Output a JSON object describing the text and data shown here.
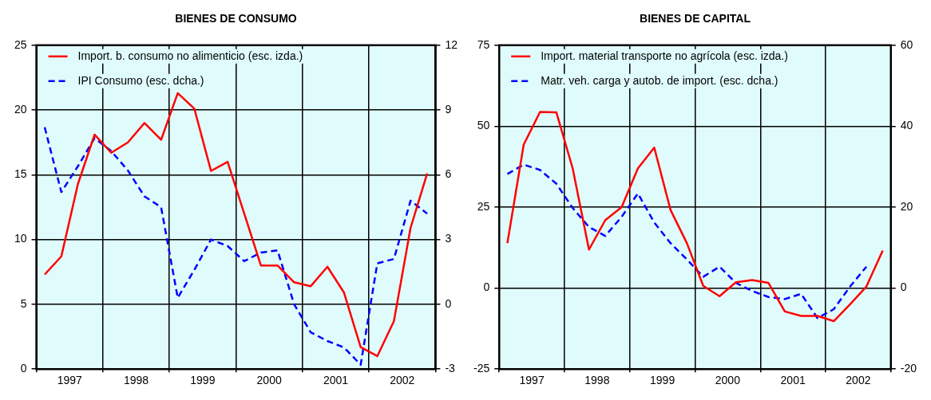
{
  "chart_data": [
    {
      "type": "line",
      "title": "BIENES DE CONSUMO",
      "x": [
        1997.125,
        1997.375,
        1997.625,
        1997.875,
        1998.125,
        1998.375,
        1998.625,
        1998.875,
        1999.125,
        1999.375,
        1999.625,
        1999.875,
        2000.125,
        2000.375,
        2000.625,
        2000.875,
        2001.125,
        2001.375,
        2001.625,
        2001.875,
        2002.125,
        2002.375,
        2002.625,
        2002.875
      ],
      "xlim": [
        1997,
        2003
      ],
      "xticks": [
        {
          "value": 1997,
          "label": null
        },
        {
          "value": 1997.5,
          "label": "1997"
        },
        {
          "value": 1998,
          "label": null
        },
        {
          "value": 1998.5,
          "label": "1998"
        },
        {
          "value": 1999,
          "label": null
        },
        {
          "value": 1999.5,
          "label": "1999"
        },
        {
          "value": 2000,
          "label": null
        },
        {
          "value": 2000.5,
          "label": "2000"
        },
        {
          "value": 2001,
          "label": null
        },
        {
          "value": 2001.5,
          "label": "2001"
        },
        {
          "value": 2002,
          "label": null
        },
        {
          "value": 2002.5,
          "label": "2002"
        },
        {
          "value": 2003,
          "label": null
        }
      ],
      "ylim": [
        0,
        25
      ],
      "yticks": [
        0,
        5,
        10,
        15,
        20,
        25
      ],
      "y2lim": [
        -3,
        12
      ],
      "y2ticks": [
        -3,
        0,
        3,
        6,
        9,
        12
      ],
      "grid": true,
      "legend": "top left",
      "marker": "none",
      "series": [
        {
          "name": "Import. b. consumo no alimenticio (esc. izda.)",
          "color": "#ff0000",
          "line_style": "solid",
          "values": [
            7.3,
            8.7,
            14.3,
            18.1,
            16.7,
            17.5,
            19.0,
            17.7,
            21.3,
            20.1,
            15.3,
            16.0,
            12.0,
            8.0,
            8.0,
            6.7,
            6.4,
            7.9,
            5.9,
            1.7,
            1.0,
            3.7,
            10.9,
            15.1
          ]
        },
        {
          "name": "IPI Consumo (esc. dcha.)",
          "color": "#0000ff",
          "line_style": "dashed",
          "axis": "y2",
          "values": [
            8.2,
            5.2,
            6.4,
            7.7,
            7.1,
            6.2,
            5.0,
            4.5,
            0.3,
            1.6,
            3.0,
            2.7,
            2.0,
            2.4,
            2.5,
            0.0,
            -1.3,
            -1.7,
            -2.0,
            -2.8,
            1.9,
            2.1,
            4.8,
            4.2
          ]
        }
      ]
    },
    {
      "type": "line",
      "title": "BIENES DE CAPITAL",
      "x": [
        1997.125,
        1997.375,
        1997.625,
        1997.875,
        1998.125,
        1998.375,
        1998.625,
        1998.875,
        1999.125,
        1999.375,
        1999.625,
        1999.875,
        2000.125,
        2000.375,
        2000.625,
        2000.875,
        2001.125,
        2001.375,
        2001.625,
        2001.875,
        2002.125,
        2002.375,
        2002.625,
        2002.875
      ],
      "xlim": [
        1997,
        2003
      ],
      "xticks": [
        {
          "value": 1997,
          "label": null
        },
        {
          "value": 1997.5,
          "label": "1997"
        },
        {
          "value": 1998,
          "label": null
        },
        {
          "value": 1998.5,
          "label": "1998"
        },
        {
          "value": 1999,
          "label": null
        },
        {
          "value": 1999.5,
          "label": "1999"
        },
        {
          "value": 2000,
          "label": null
        },
        {
          "value": 2000.5,
          "label": "2000"
        },
        {
          "value": 2001,
          "label": null
        },
        {
          "value": 2001.5,
          "label": "2001"
        },
        {
          "value": 2002,
          "label": null
        },
        {
          "value": 2002.5,
          "label": "2002"
        },
        {
          "value": 2003,
          "label": null
        }
      ],
      "ylim": [
        -25,
        75
      ],
      "yticks": [
        -25,
        0,
        25,
        50,
        75
      ],
      "y2lim": [
        -20,
        60
      ],
      "y2ticks": [
        -20,
        0,
        20,
        40,
        60
      ],
      "grid": true,
      "legend": "top left",
      "marker": "none",
      "series": [
        {
          "name": "Import. material transporte no agrícola (esc. izda.)",
          "color": "#ff0000",
          "line_style": "solid",
          "values": [
            13.9,
            44.3,
            54.4,
            54.3,
            37.0,
            11.9,
            21.0,
            25.0,
            37.0,
            43.4,
            24.1,
            13.9,
            0.7,
            -2.5,
            1.8,
            2.5,
            1.6,
            -7.2,
            -8.6,
            -8.6,
            -10.2,
            -5.0,
            0.5,
            11.6
          ]
        },
        {
          "name": "Matr. veh. carga y autob. de import. (esc. dcha.)",
          "color": "#0000ff",
          "line_style": "dashed",
          "axis": "y2",
          "values": [
            28.2,
            30.5,
            29.2,
            25.8,
            19.8,
            15.1,
            12.9,
            17.6,
            23.4,
            16.2,
            11.1,
            7.1,
            2.8,
            5.3,
            1.3,
            -0.7,
            -2.2,
            -2.7,
            -1.4,
            -7.4,
            -5.2,
            0.4,
            5.3,
            null
          ]
        }
      ]
    }
  ]
}
